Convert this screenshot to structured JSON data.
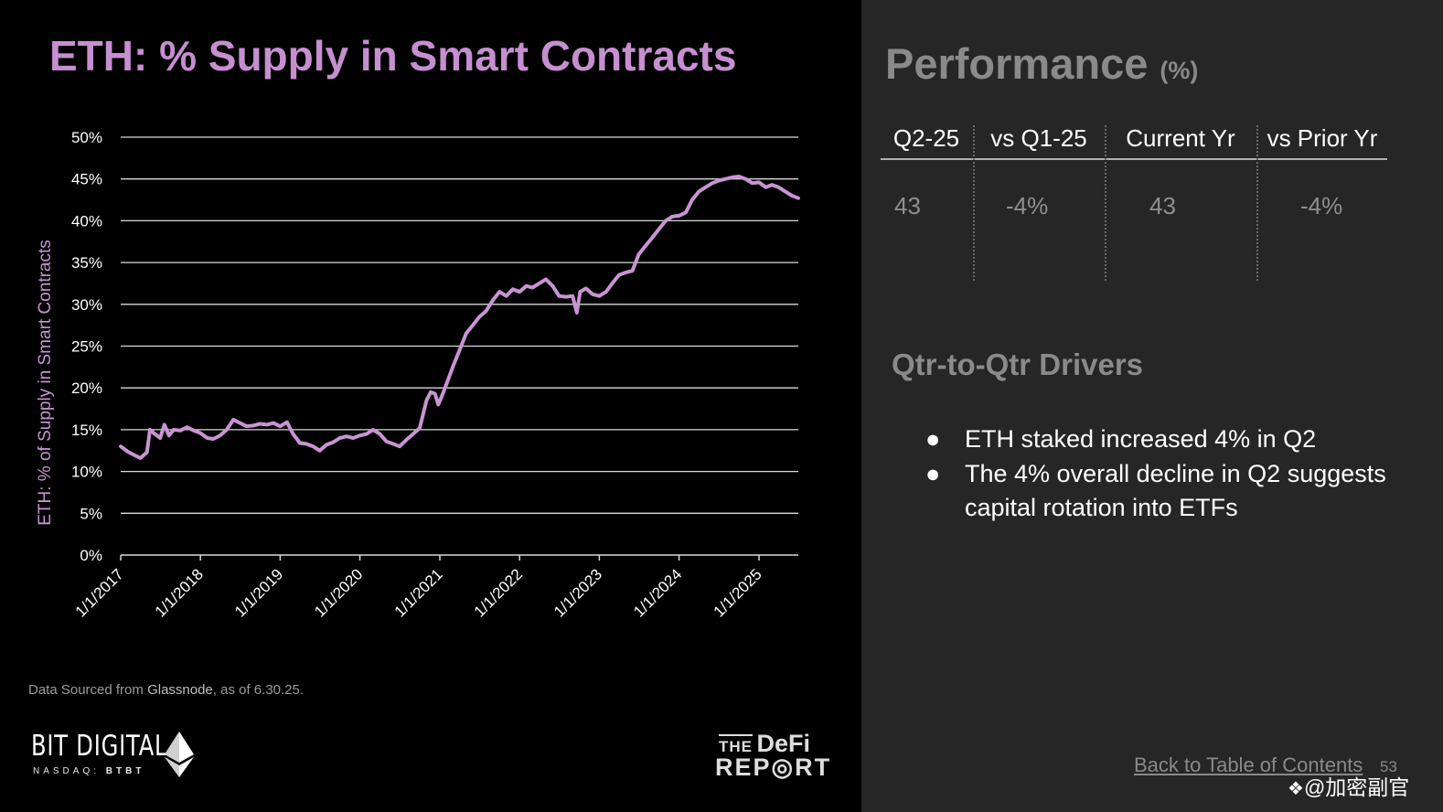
{
  "left_panel": {
    "source_prefix": "Data Sourced from ",
    "source_name": "Glassnode",
    "source_suffix": ", as of 6.30.25.",
    "bitdigital": {
      "name": "BIT DIGITAL",
      "exchange": "NASDAQ: ",
      "ticker": "BTBT"
    },
    "defi_report": {
      "the": "THE",
      "defi": "DeFi",
      "report": "REP◎RT"
    }
  },
  "chart_data": {
    "type": "line",
    "title": "ETH: % Supply in Smart Contracts",
    "ylabel": "ETH: % of Supply in Smart Contracts",
    "xlabel": "",
    "ylim": [
      0,
      50
    ],
    "ytick_labels": [
      "0%",
      "5%",
      "10%",
      "15%",
      "20%",
      "25%",
      "30%",
      "35%",
      "40%",
      "45%",
      "50%"
    ],
    "xtick_labels": [
      "1/1/2017",
      "1/1/2018",
      "1/1/2019",
      "1/1/2020",
      "1/1/2021",
      "1/1/2022",
      "1/1/2023",
      "1/1/2024",
      "1/1/2025"
    ],
    "x_range": [
      "2017-01-01",
      "2025-06-30"
    ],
    "grid": true,
    "color": "#c894d2",
    "series": [
      {
        "points": [
          [
            "2017-01-01",
            13.0
          ],
          [
            "2017-02-01",
            12.4
          ],
          [
            "2017-03-01",
            12.0
          ],
          [
            "2017-04-01",
            11.6
          ],
          [
            "2017-05-01",
            12.3
          ],
          [
            "2017-05-15",
            15.0
          ],
          [
            "2017-06-01",
            14.6
          ],
          [
            "2017-07-01",
            14.0
          ],
          [
            "2017-07-20",
            15.6
          ],
          [
            "2017-08-10",
            14.3
          ],
          [
            "2017-09-01",
            15.0
          ],
          [
            "2017-10-01",
            14.9
          ],
          [
            "2017-11-01",
            15.3
          ],
          [
            "2017-12-01",
            14.9
          ],
          [
            "2018-01-01",
            14.6
          ],
          [
            "2018-02-01",
            14.0
          ],
          [
            "2018-03-01",
            13.9
          ],
          [
            "2018-04-01",
            14.3
          ],
          [
            "2018-05-01",
            15.0
          ],
          [
            "2018-06-01",
            16.2
          ],
          [
            "2018-07-01",
            15.8
          ],
          [
            "2018-08-01",
            15.4
          ],
          [
            "2018-09-01",
            15.5
          ],
          [
            "2018-10-01",
            15.7
          ],
          [
            "2018-11-01",
            15.6
          ],
          [
            "2018-12-01",
            15.8
          ],
          [
            "2019-01-01",
            15.4
          ],
          [
            "2019-02-01",
            15.9
          ],
          [
            "2019-03-01",
            14.5
          ],
          [
            "2019-04-01",
            13.4
          ],
          [
            "2019-05-01",
            13.3
          ],
          [
            "2019-06-01",
            13.0
          ],
          [
            "2019-07-01",
            12.5
          ],
          [
            "2019-08-01",
            13.2
          ],
          [
            "2019-09-01",
            13.5
          ],
          [
            "2019-10-01",
            14.0
          ],
          [
            "2019-11-01",
            14.2
          ],
          [
            "2019-12-01",
            14.0
          ],
          [
            "2020-01-01",
            14.3
          ],
          [
            "2020-02-01",
            14.5
          ],
          [
            "2020-03-01",
            15.0
          ],
          [
            "2020-04-01",
            14.5
          ],
          [
            "2020-05-01",
            13.6
          ],
          [
            "2020-06-01",
            13.3
          ],
          [
            "2020-07-01",
            13.0
          ],
          [
            "2020-08-01",
            13.8
          ],
          [
            "2020-09-01",
            14.5
          ],
          [
            "2020-10-01",
            15.2
          ],
          [
            "2020-11-01",
            18.5
          ],
          [
            "2020-11-20",
            19.5
          ],
          [
            "2020-12-10",
            19.3
          ],
          [
            "2020-12-25",
            18.0
          ],
          [
            "2021-01-10",
            19.0
          ],
          [
            "2021-02-01",
            20.5
          ],
          [
            "2021-03-01",
            22.5
          ],
          [
            "2021-04-01",
            24.5
          ],
          [
            "2021-05-01",
            26.5
          ],
          [
            "2021-06-01",
            27.5
          ],
          [
            "2021-07-01",
            28.5
          ],
          [
            "2021-08-01",
            29.2
          ],
          [
            "2021-09-01",
            30.5
          ],
          [
            "2021-10-01",
            31.5
          ],
          [
            "2021-11-01",
            31.0
          ],
          [
            "2021-12-01",
            31.8
          ],
          [
            "2022-01-01",
            31.5
          ],
          [
            "2022-02-01",
            32.2
          ],
          [
            "2022-03-01",
            32.0
          ],
          [
            "2022-04-01",
            32.5
          ],
          [
            "2022-05-01",
            33.0
          ],
          [
            "2022-06-01",
            32.2
          ],
          [
            "2022-07-01",
            31.0
          ],
          [
            "2022-08-01",
            30.9
          ],
          [
            "2022-09-01",
            31.0
          ],
          [
            "2022-09-20",
            29.0
          ],
          [
            "2022-10-05",
            31.5
          ],
          [
            "2022-11-01",
            31.9
          ],
          [
            "2022-12-01",
            31.2
          ],
          [
            "2023-01-01",
            31.0
          ],
          [
            "2023-02-01",
            31.5
          ],
          [
            "2023-03-01",
            32.5
          ],
          [
            "2023-04-01",
            33.5
          ],
          [
            "2023-05-01",
            33.8
          ],
          [
            "2023-06-01",
            34.0
          ],
          [
            "2023-07-01",
            36.0
          ],
          [
            "2023-08-01",
            37.0
          ],
          [
            "2023-09-01",
            38.0
          ],
          [
            "2023-10-01",
            39.0
          ],
          [
            "2023-11-01",
            40.0
          ],
          [
            "2023-12-01",
            40.5
          ],
          [
            "2024-01-01",
            40.6
          ],
          [
            "2024-02-01",
            41.0
          ],
          [
            "2024-03-01",
            42.5
          ],
          [
            "2024-04-01",
            43.5
          ],
          [
            "2024-05-01",
            44.0
          ],
          [
            "2024-06-01",
            44.5
          ],
          [
            "2024-07-01",
            44.8
          ],
          [
            "2024-08-01",
            45.0
          ],
          [
            "2024-09-01",
            45.2
          ],
          [
            "2024-10-01",
            45.3
          ],
          [
            "2024-11-01",
            45.0
          ],
          [
            "2024-12-01",
            44.5
          ],
          [
            "2025-01-01",
            44.6
          ],
          [
            "2025-02-01",
            44.0
          ],
          [
            "2025-03-01",
            44.3
          ],
          [
            "2025-04-01",
            44.0
          ],
          [
            "2025-05-01",
            43.5
          ],
          [
            "2025-06-01",
            43.0
          ],
          [
            "2025-06-30",
            42.7
          ]
        ]
      }
    ]
  },
  "performance": {
    "title": "Performance",
    "unit": "(%)",
    "columns": [
      {
        "header": "Q2-25",
        "value": "43"
      },
      {
        "header": "vs Q1-25",
        "value": "-4%"
      },
      {
        "header": "Current Yr",
        "value": "43"
      },
      {
        "header": "vs Prior Yr",
        "value": "-4%"
      }
    ]
  },
  "drivers": {
    "title": "Qtr-to-Qtr Drivers",
    "bullet": "●",
    "items": [
      "ETH staked increased 4% in Q2",
      "The 4% overall decline in Q2 suggests capital rotation into ETFs"
    ]
  },
  "footer": {
    "back_link": "Back to Table of Contents",
    "page_number": "53",
    "watermark": "@加密副官",
    "watermark_icon": "❖"
  }
}
